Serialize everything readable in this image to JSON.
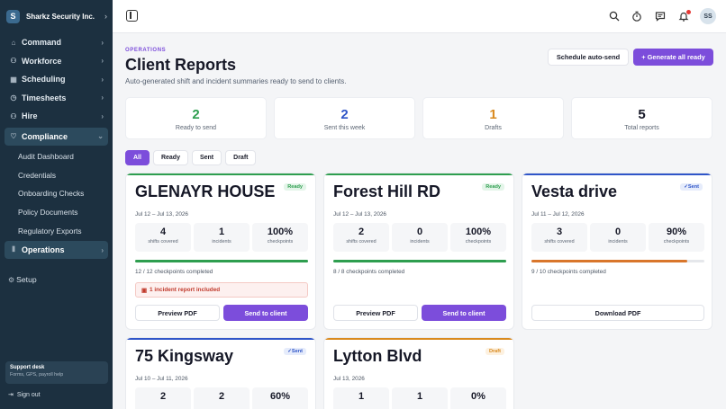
{
  "org": {
    "logo": "S",
    "name": "Sharkz Security Inc.",
    "chevron": "›"
  },
  "nav": {
    "items": [
      {
        "label": "Command",
        "icon": "⌂",
        "chevron": "›"
      },
      {
        "label": "Workforce",
        "icon": "⚇",
        "chevron": "›"
      },
      {
        "label": "Scheduling",
        "icon": "▦",
        "chevron": "›"
      },
      {
        "label": "Timesheets",
        "icon": "◷",
        "chevron": "›"
      },
      {
        "label": "Hire",
        "icon": "⚇",
        "chevron": "›"
      },
      {
        "label": "Compliance",
        "icon": "♡",
        "chevron": "⌄"
      }
    ],
    "compliance_sub": [
      "Audit Dashboard",
      "Credentials",
      "Onboarding Checks",
      "Policy Documents",
      "Regulatory Exports"
    ],
    "operations": {
      "label": "Operations",
      "icon": "⫴",
      "chevron": "›"
    },
    "setup": {
      "label": "Setup",
      "icon": "⚙"
    }
  },
  "support": {
    "title": "Support desk",
    "subtitle": "Forms, GPS, payroll help"
  },
  "signout": {
    "label": "Sign out",
    "icon": "⇥"
  },
  "topbar": {
    "avatar": "SS",
    "icons": [
      "search-icon",
      "timer-icon",
      "chat-icon",
      "bell-icon"
    ]
  },
  "header": {
    "eyebrow": "OPERATIONS",
    "title": "Client Reports",
    "subtitle": "Auto-generated shift and incident summaries ready to send to clients.",
    "schedule_btn": "Schedule auto-send",
    "generate_btn": "+ Generate all ready"
  },
  "stats": [
    {
      "value": "2",
      "label": "Ready to send",
      "color": "#2e9e4f"
    },
    {
      "value": "2",
      "label": "Sent this week",
      "color": "#2f55c8"
    },
    {
      "value": "1",
      "label": "Drafts",
      "color": "#d98a1e"
    },
    {
      "value": "5",
      "label": "Total reports",
      "color": "#161827"
    }
  ],
  "filters": [
    "All",
    "Ready",
    "Sent",
    "Draft"
  ],
  "cards": [
    {
      "name": "GLENAYR HOUSE",
      "badge": "Ready",
      "dates": "Jul 12 – Jul 13, 2026",
      "metrics": [
        {
          "value": "4",
          "label": "shifts covered"
        },
        {
          "value": "1",
          "label": "incidents"
        },
        {
          "value": "100%",
          "label": "checkpoints"
        }
      ],
      "progress": 1.0,
      "checkpoints": "12 / 12 checkpoints completed",
      "incident": "1 incident report included",
      "btn1": "Preview PDF",
      "btn2": "Send to client"
    },
    {
      "name": "Forest Hill RD",
      "badge": "Ready",
      "dates": "Jul 12 – Jul 13, 2026",
      "metrics": [
        {
          "value": "2",
          "label": "shifts covered"
        },
        {
          "value": "0",
          "label": "incidents"
        },
        {
          "value": "100%",
          "label": "checkpoints"
        }
      ],
      "progress": 1.0,
      "checkpoints": "8 / 8 checkpoints completed",
      "btn1": "Preview PDF",
      "btn2": "Send to client"
    },
    {
      "name": "Vesta drive",
      "badge": "✓Sent",
      "dates": "Jul 11 – Jul 12, 2026",
      "metrics": [
        {
          "value": "3",
          "label": "shifts covered"
        },
        {
          "value": "0",
          "label": "incidents"
        },
        {
          "value": "90%",
          "label": "checkpoints"
        }
      ],
      "progress": 0.9,
      "checkpoints": "9 / 10 checkpoints completed",
      "btn1": "Download PDF"
    },
    {
      "name": "75 Kingsway",
      "badge": "✓Sent",
      "dates": "Jul 10 – Jul 11, 2026",
      "metrics": [
        {
          "value": "2",
          "label": ""
        },
        {
          "value": "2",
          "label": ""
        },
        {
          "value": "60%",
          "label": ""
        }
      ]
    },
    {
      "name": "Lytton Blvd",
      "badge": "Draft",
      "dates": "Jul 13, 2026",
      "metrics": [
        {
          "value": "1",
          "label": ""
        },
        {
          "value": "1",
          "label": ""
        },
        {
          "value": "0%",
          "label": ""
        }
      ]
    }
  ],
  "colors": {
    "accent": "#7c4ddb",
    "ready": "#2e9e4f",
    "sent": "#2f55c8",
    "draft": "#d98a1e",
    "sidebar": "#1c3040"
  }
}
